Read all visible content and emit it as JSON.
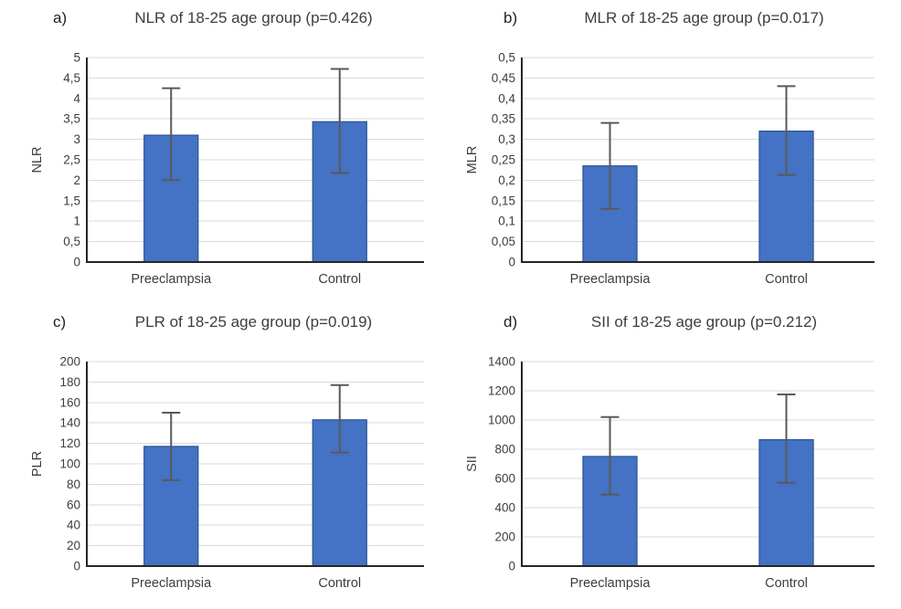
{
  "figure": {
    "background": "#ffffff",
    "group_label": "18-25 age group"
  },
  "colors": {
    "bar_fill": "#4472C4",
    "bar_border": "#2F5597",
    "error_bar": "#595959",
    "gridline": "#D9D9D9",
    "axis": "#262626",
    "title_text": "#3d3d3d",
    "tick_text": "#3d3d3d",
    "panel_letter_text": "#1f1f1f"
  },
  "chart_data": [
    {
      "panel_label": "a)",
      "type": "bar",
      "title": "NLR of 18-25 age group (p=0.426)",
      "p_value": "0.426",
      "ylabel": "NLR",
      "xlabel": "",
      "categories": [
        "Preeclampsia",
        "Control"
      ],
      "values": [
        3.1,
        3.43
      ],
      "error_low": [
        2.0,
        2.18
      ],
      "error_high": [
        4.25,
        4.72
      ],
      "ylim": [
        0,
        5
      ],
      "ytick_step": 0.5,
      "ytick_labels": [
        "0",
        "0,5",
        "1",
        "1,5",
        "2",
        "2,5",
        "3",
        "3,5",
        "4",
        "4,5",
        "5"
      ],
      "grid": true,
      "legend": "none"
    },
    {
      "panel_label": "b)",
      "type": "bar",
      "title": "MLR of 18-25 age group (p=0.017)",
      "p_value": "0.017",
      "ylabel": "MLR",
      "xlabel": "",
      "categories": [
        "Preeclampsia",
        "Control"
      ],
      "values": [
        0.235,
        0.32
      ],
      "error_low": [
        0.13,
        0.213
      ],
      "error_high": [
        0.34,
        0.43
      ],
      "ylim": [
        0,
        0.5
      ],
      "ytick_step": 0.05,
      "ytick_labels": [
        "0",
        "0,05",
        "0,1",
        "0,15",
        "0,2",
        "0,25",
        "0,3",
        "0,35",
        "0,4",
        "0,45",
        "0,5"
      ],
      "grid": true,
      "legend": "none"
    },
    {
      "panel_label": "c)",
      "type": "bar",
      "title": "PLR of 18-25 age group (p=0.019)",
      "p_value": "0.019",
      "ylabel": "PLR",
      "xlabel": "",
      "categories": [
        "Preeclampsia",
        "Control"
      ],
      "values": [
        117,
        143
      ],
      "error_low": [
        84,
        111
      ],
      "error_high": [
        150,
        177
      ],
      "ylim": [
        0,
        200
      ],
      "ytick_step": 20,
      "ytick_labels": [
        "0",
        "20",
        "40",
        "60",
        "80",
        "100",
        "120",
        "140",
        "160",
        "180",
        "200"
      ],
      "grid": true,
      "legend": "none"
    },
    {
      "panel_label": "d)",
      "type": "bar",
      "title": "SII of 18-25 age group (p=0.212)",
      "p_value": "0.212",
      "ylabel": "SII",
      "xlabel": "",
      "categories": [
        "Preeclampsia",
        "Control"
      ],
      "values": [
        750,
        865
      ],
      "error_low": [
        490,
        570
      ],
      "error_high": [
        1020,
        1175
      ],
      "ylim": [
        0,
        1400
      ],
      "ytick_step": 200,
      "ytick_labels": [
        "0",
        "200",
        "400",
        "600",
        "800",
        "1000",
        "1200",
        "1400"
      ],
      "grid": true,
      "legend": "none"
    }
  ]
}
